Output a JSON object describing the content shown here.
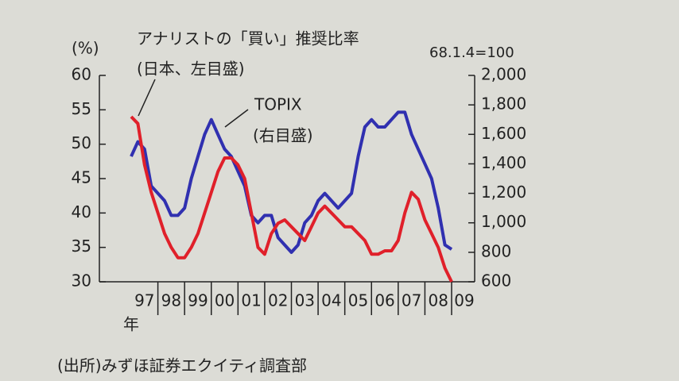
{
  "chart_data": {
    "type": "line",
    "annotations": {
      "left_unit": "(%)",
      "red_label": "アナリストの「買い」推奨比率",
      "red_sub": "(日本、左目盛)",
      "blue_label": "TOPIX",
      "blue_sub": "(右目盛)",
      "base": "68.1.4=100",
      "x_unit": "年",
      "source": "(出所)みずほ証券エクイティ調査部"
    },
    "categories": [
      "97",
      null,
      null,
      null,
      "98",
      null,
      null,
      null,
      "99",
      null,
      null,
      null,
      "00",
      null,
      null,
      null,
      "01",
      null,
      null,
      null,
      "02",
      null,
      null,
      null,
      "03",
      null,
      null,
      null,
      "04",
      null,
      null,
      null,
      "05",
      null,
      null,
      null,
      "06",
      null,
      null,
      null,
      "07",
      null,
      null,
      null,
      "08",
      null,
      null,
      null,
      "09"
    ],
    "series": [
      {
        "name": "アナリストの「買い」推奨比率",
        "color": "#e0202a",
        "axis": "y",
        "values": [
          54,
          53,
          47,
          43,
          40,
          37,
          35,
          33.5,
          33.5,
          35,
          37,
          40,
          43,
          46,
          48,
          48,
          47,
          45,
          40,
          35,
          34,
          37,
          38.5,
          39,
          38,
          37,
          36,
          38,
          40,
          41,
          40,
          39,
          38,
          38,
          37,
          36,
          34,
          34,
          34.5,
          34.5,
          36,
          40,
          43,
          42,
          39,
          37,
          35,
          32,
          30
        ]
      },
      {
        "name": "TOPIX",
        "color": "#3030b0",
        "axis": "y2",
        "values": [
          1450,
          1550,
          1500,
          1250,
          1200,
          1150,
          1050,
          1050,
          1100,
          1300,
          1450,
          1600,
          1700,
          1600,
          1500,
          1450,
          1350,
          1250,
          1050,
          1000,
          1050,
          1050,
          900,
          850,
          800,
          850,
          1000,
          1050,
          1150,
          1200,
          1150,
          1100,
          1150,
          1200,
          1450,
          1650,
          1700,
          1650,
          1650,
          1700,
          1750,
          1750,
          1600,
          1500,
          1400,
          1300,
          1100,
          850,
          820
        ]
      }
    ],
    "ylim": [
      30,
      60
    ],
    "yticks": [
      30,
      35,
      40,
      45,
      50,
      55,
      60
    ],
    "y2lim": [
      600,
      2000
    ],
    "y2ticks": [
      600,
      800,
      {
        "value": 1000,
        "label": "1,000"
      },
      {
        "value": 1200,
        "label": "1,200"
      },
      {
        "value": 1400,
        "label": "1,400"
      },
      {
        "value": 1600,
        "label": "1,600"
      },
      {
        "value": 1800,
        "label": "1,800"
      },
      {
        "value": 2000,
        "label": "2,000"
      }
    ]
  }
}
